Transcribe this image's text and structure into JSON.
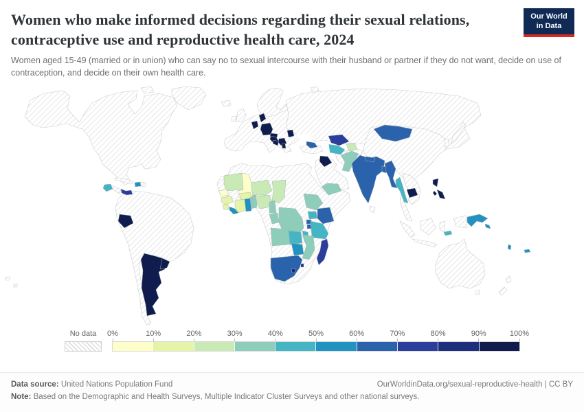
{
  "header": {
    "title": "Women who make informed decisions regarding their sexual relations, contraceptive use and reproductive health care, 2024",
    "subtitle": "Women aged 15-49 (married or in union) who can say no to sexual intercourse with their husband or partner if they do not want, decide on use of contraception, and decide on their own health care.",
    "logo": {
      "line1": "Our World",
      "line2": "in Data",
      "bg_color": "#0f2a54",
      "accent_color": "#d42a20"
    }
  },
  "legend": {
    "no_data_label": "No data",
    "tick_labels": [
      "0%",
      "10%",
      "20%",
      "30%",
      "40%",
      "50%",
      "60%",
      "70%",
      "80%",
      "90%",
      "100%"
    ],
    "bin_colors": [
      "#fdfec9",
      "#e5f4a6",
      "#c9e9b5",
      "#8ecdb9",
      "#46b5c3",
      "#2292c1",
      "#2a63ac",
      "#2b3e9b",
      "#1d2e7c",
      "#101c4d"
    ]
  },
  "chart_data": {
    "type": "choropleth_map",
    "title": "Women who make informed decisions regarding their sexual relations, contraceptive use and reproductive health care, 2024",
    "unit": "% of women aged 15-49 (married or in union)",
    "bin_ranges": [
      "0-10%",
      "10-20%",
      "20-30%",
      "30-40%",
      "40-50%",
      "50-60%",
      "60-70%",
      "70-80%",
      "80-90%",
      "90-100%"
    ],
    "countries": {
      "Senegal": {
        "bin": 0,
        "range": "0-10%"
      },
      "Mali": {
        "bin": 0,
        "range": "0-10%"
      },
      "Guinea": {
        "bin": 1,
        "range": "10-20%"
      },
      "Sierra Leone": {
        "bin": 1,
        "range": "10-20%"
      },
      "Cote d'Ivoire": {
        "bin": 1,
        "range": "10-20%"
      },
      "Burkina Faso": {
        "bin": 1,
        "range": "10-20%"
      },
      "Mauritania": {
        "bin": 2,
        "range": "20-30%"
      },
      "Niger": {
        "bin": 2,
        "range": "20-30%"
      },
      "Chad": {
        "bin": 2,
        "range": "20-30%"
      },
      "Nigeria": {
        "bin": 2,
        "range": "20-30%"
      },
      "Tajikistan": {
        "bin": 2,
        "range": "20-30%"
      },
      "Togo": {
        "bin": 3,
        "range": "30-40%"
      },
      "Benin": {
        "bin": 3,
        "range": "30-40%"
      },
      "Cameroon": {
        "bin": 3,
        "range": "30-40%"
      },
      "Ethiopia": {
        "bin": 3,
        "range": "30-40%"
      },
      "Democratic Republic of Congo": {
        "bin": 3,
        "range": "30-40%"
      },
      "Congo": {
        "bin": 3,
        "range": "30-40%"
      },
      "Angola": {
        "bin": 3,
        "range": "30-40%"
      },
      "Mozambique": {
        "bin": 3,
        "range": "30-40%"
      },
      "Yemen": {
        "bin": 3,
        "range": "30-40%"
      },
      "Pakistan": {
        "bin": 3,
        "range": "30-40%"
      },
      "Guatemala": {
        "bin": 4,
        "range": "40-50%"
      },
      "Uganda": {
        "bin": 4,
        "range": "40-50%"
      },
      "Tanzania": {
        "bin": 4,
        "range": "40-50%"
      },
      "Zambia": {
        "bin": 4,
        "range": "40-50%"
      },
      "Malawi": {
        "bin": 4,
        "range": "40-50%"
      },
      "Turkmenistan": {
        "bin": 4,
        "range": "40-50%"
      },
      "Thailand": {
        "bin": 4,
        "range": "40-50%"
      },
      "Timor-Leste": {
        "bin": 4,
        "range": "40-50%"
      },
      "Haiti": {
        "bin": 5,
        "range": "50-60%"
      },
      "Liberia": {
        "bin": 5,
        "range": "50-60%"
      },
      "Ghana": {
        "bin": 5,
        "range": "50-60%"
      },
      "Zimbabwe": {
        "bin": 5,
        "range": "50-60%"
      },
      "Papua New Guinea": {
        "bin": 5,
        "range": "50-60%"
      },
      "Solomon Islands": {
        "bin": 5,
        "range": "50-60%"
      },
      "Vanuatu": {
        "bin": 5,
        "range": "50-60%"
      },
      "Fiji": {
        "bin": 5,
        "range": "50-60%"
      },
      "Kenya": {
        "bin": 6,
        "range": "60-70%"
      },
      "Rwanda": {
        "bin": 6,
        "range": "60-70%"
      },
      "Burundi": {
        "bin": 6,
        "range": "60-70%"
      },
      "South Africa": {
        "bin": 6,
        "range": "60-70%"
      },
      "India": {
        "bin": 6,
        "range": "60-70%"
      },
      "Nepal": {
        "bin": 6,
        "range": "60-70%"
      },
      "Bangladesh": {
        "bin": 6,
        "range": "60-70%"
      },
      "Myanmar": {
        "bin": 6,
        "range": "60-70%"
      },
      "Mongolia": {
        "bin": 6,
        "range": "60-70%"
      },
      "Azerbaijan": {
        "bin": 6,
        "range": "60-70%"
      },
      "Panama": {
        "bin": 7,
        "range": "70-80%"
      },
      "Madagascar": {
        "bin": 7,
        "range": "70-80%"
      },
      "Uzbekistan": {
        "bin": 7,
        "range": "70-80%"
      },
      "Lesotho": {
        "bin": 8,
        "range": "80-90%"
      },
      "Eswatini": {
        "bin": 8,
        "range": "80-90%"
      },
      "Argentina": {
        "bin": 9,
        "range": "90-100%"
      },
      "Uruguay": {
        "bin": 9,
        "range": "90-100%"
      },
      "Ecuador": {
        "bin": 9,
        "range": "90-100%"
      },
      "Netherlands": {
        "bin": 9,
        "range": "90-100%"
      },
      "Denmark": {
        "bin": 9,
        "range": "90-100%"
      },
      "Germany": {
        "bin": 9,
        "range": "90-100%"
      },
      "Austria": {
        "bin": 9,
        "range": "90-100%"
      },
      "Croatia": {
        "bin": 9,
        "range": "90-100%"
      },
      "Bosnia and Herzegovina": {
        "bin": 9,
        "range": "90-100%"
      },
      "Serbia": {
        "bin": 9,
        "range": "90-100%"
      },
      "Albania": {
        "bin": 9,
        "range": "90-100%"
      },
      "Moldova": {
        "bin": 9,
        "range": "90-100%"
      },
      "Jordan": {
        "bin": 9,
        "range": "90-100%"
      },
      "Cambodia": {
        "bin": 9,
        "range": "90-100%"
      },
      "Philippines": {
        "bin": 9,
        "range": "90-100%"
      }
    },
    "no_data": [
      "United States",
      "Canada",
      "Mexico",
      "Greenland",
      "Brazil",
      "Colombia",
      "Venezuela",
      "Peru",
      "Bolivia",
      "Chile",
      "Paraguay",
      "Cuba",
      "Dominican Republic",
      "Russia",
      "Kazakhstan",
      "China",
      "Japan",
      "South Korea",
      "Vietnam",
      "Laos",
      "Indonesia",
      "Malaysia",
      "Australia",
      "New Zealand",
      "Iran",
      "Afghanistan",
      "Saudi Arabia",
      "Turkey",
      "Egypt",
      "Libya",
      "Algeria",
      "Morocco",
      "Sudan",
      "South Sudan",
      "Somalia",
      "Central African Republic",
      "Namibia",
      "Botswana",
      "United Kingdom",
      "Ireland",
      "France",
      "Spain",
      "Portugal",
      "Italy",
      "Poland",
      "Norway",
      "Sweden",
      "Finland",
      "Ukraine",
      "Sri Lanka"
    ]
  },
  "footer": {
    "datasource_label": "Data source:",
    "datasource_value": " United Nations Population Fund",
    "link": "OurWorldinData.org/sexual-reproductive-health | CC BY",
    "note_label": "Note:",
    "note_value": " Based on the Demographic and Health Surveys, Multiple Indicator Cluster Surveys and other national surveys."
  }
}
